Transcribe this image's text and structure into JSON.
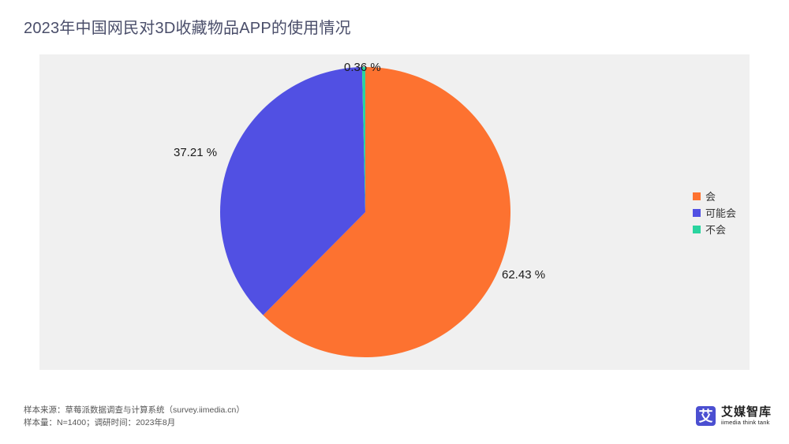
{
  "title": "2023年中国网民对3D收藏物品APP的使用情况",
  "chart_data": {
    "type": "pie",
    "title": "2023年中国网民对3D收藏物品APP的使用情况",
    "categories": [
      "会",
      "可能会",
      "不会"
    ],
    "values": [
      62.43,
      37.21,
      0.36
    ],
    "unit": "%",
    "labels": [
      "62.43 %",
      "37.21 %",
      "0.36 %"
    ],
    "colors": [
      "#fd7230",
      "#5150e3",
      "#2ad49f"
    ],
    "start_angle": "12 o'clock, clockwise",
    "legend_position": "right",
    "background": "#f0f0f0"
  },
  "legend": {
    "items": [
      {
        "label": "会",
        "color": "#fd7230"
      },
      {
        "label": "可能会",
        "color": "#5150e3"
      },
      {
        "label": "不会",
        "color": "#2ad49f"
      }
    ]
  },
  "labels": {
    "hui": "62.43 %",
    "keneng": "37.21 %",
    "buhui": "0.36 %"
  },
  "footer": {
    "source": "样本来源：草莓派数据调查与计算系统（survey.iimedia.cn）",
    "sample": "样本量：N=1400；调研时间：2023年8月"
  },
  "logo": {
    "mark": "艾",
    "name_cn": "艾媒智库",
    "name_en": "iimedia think tank"
  }
}
